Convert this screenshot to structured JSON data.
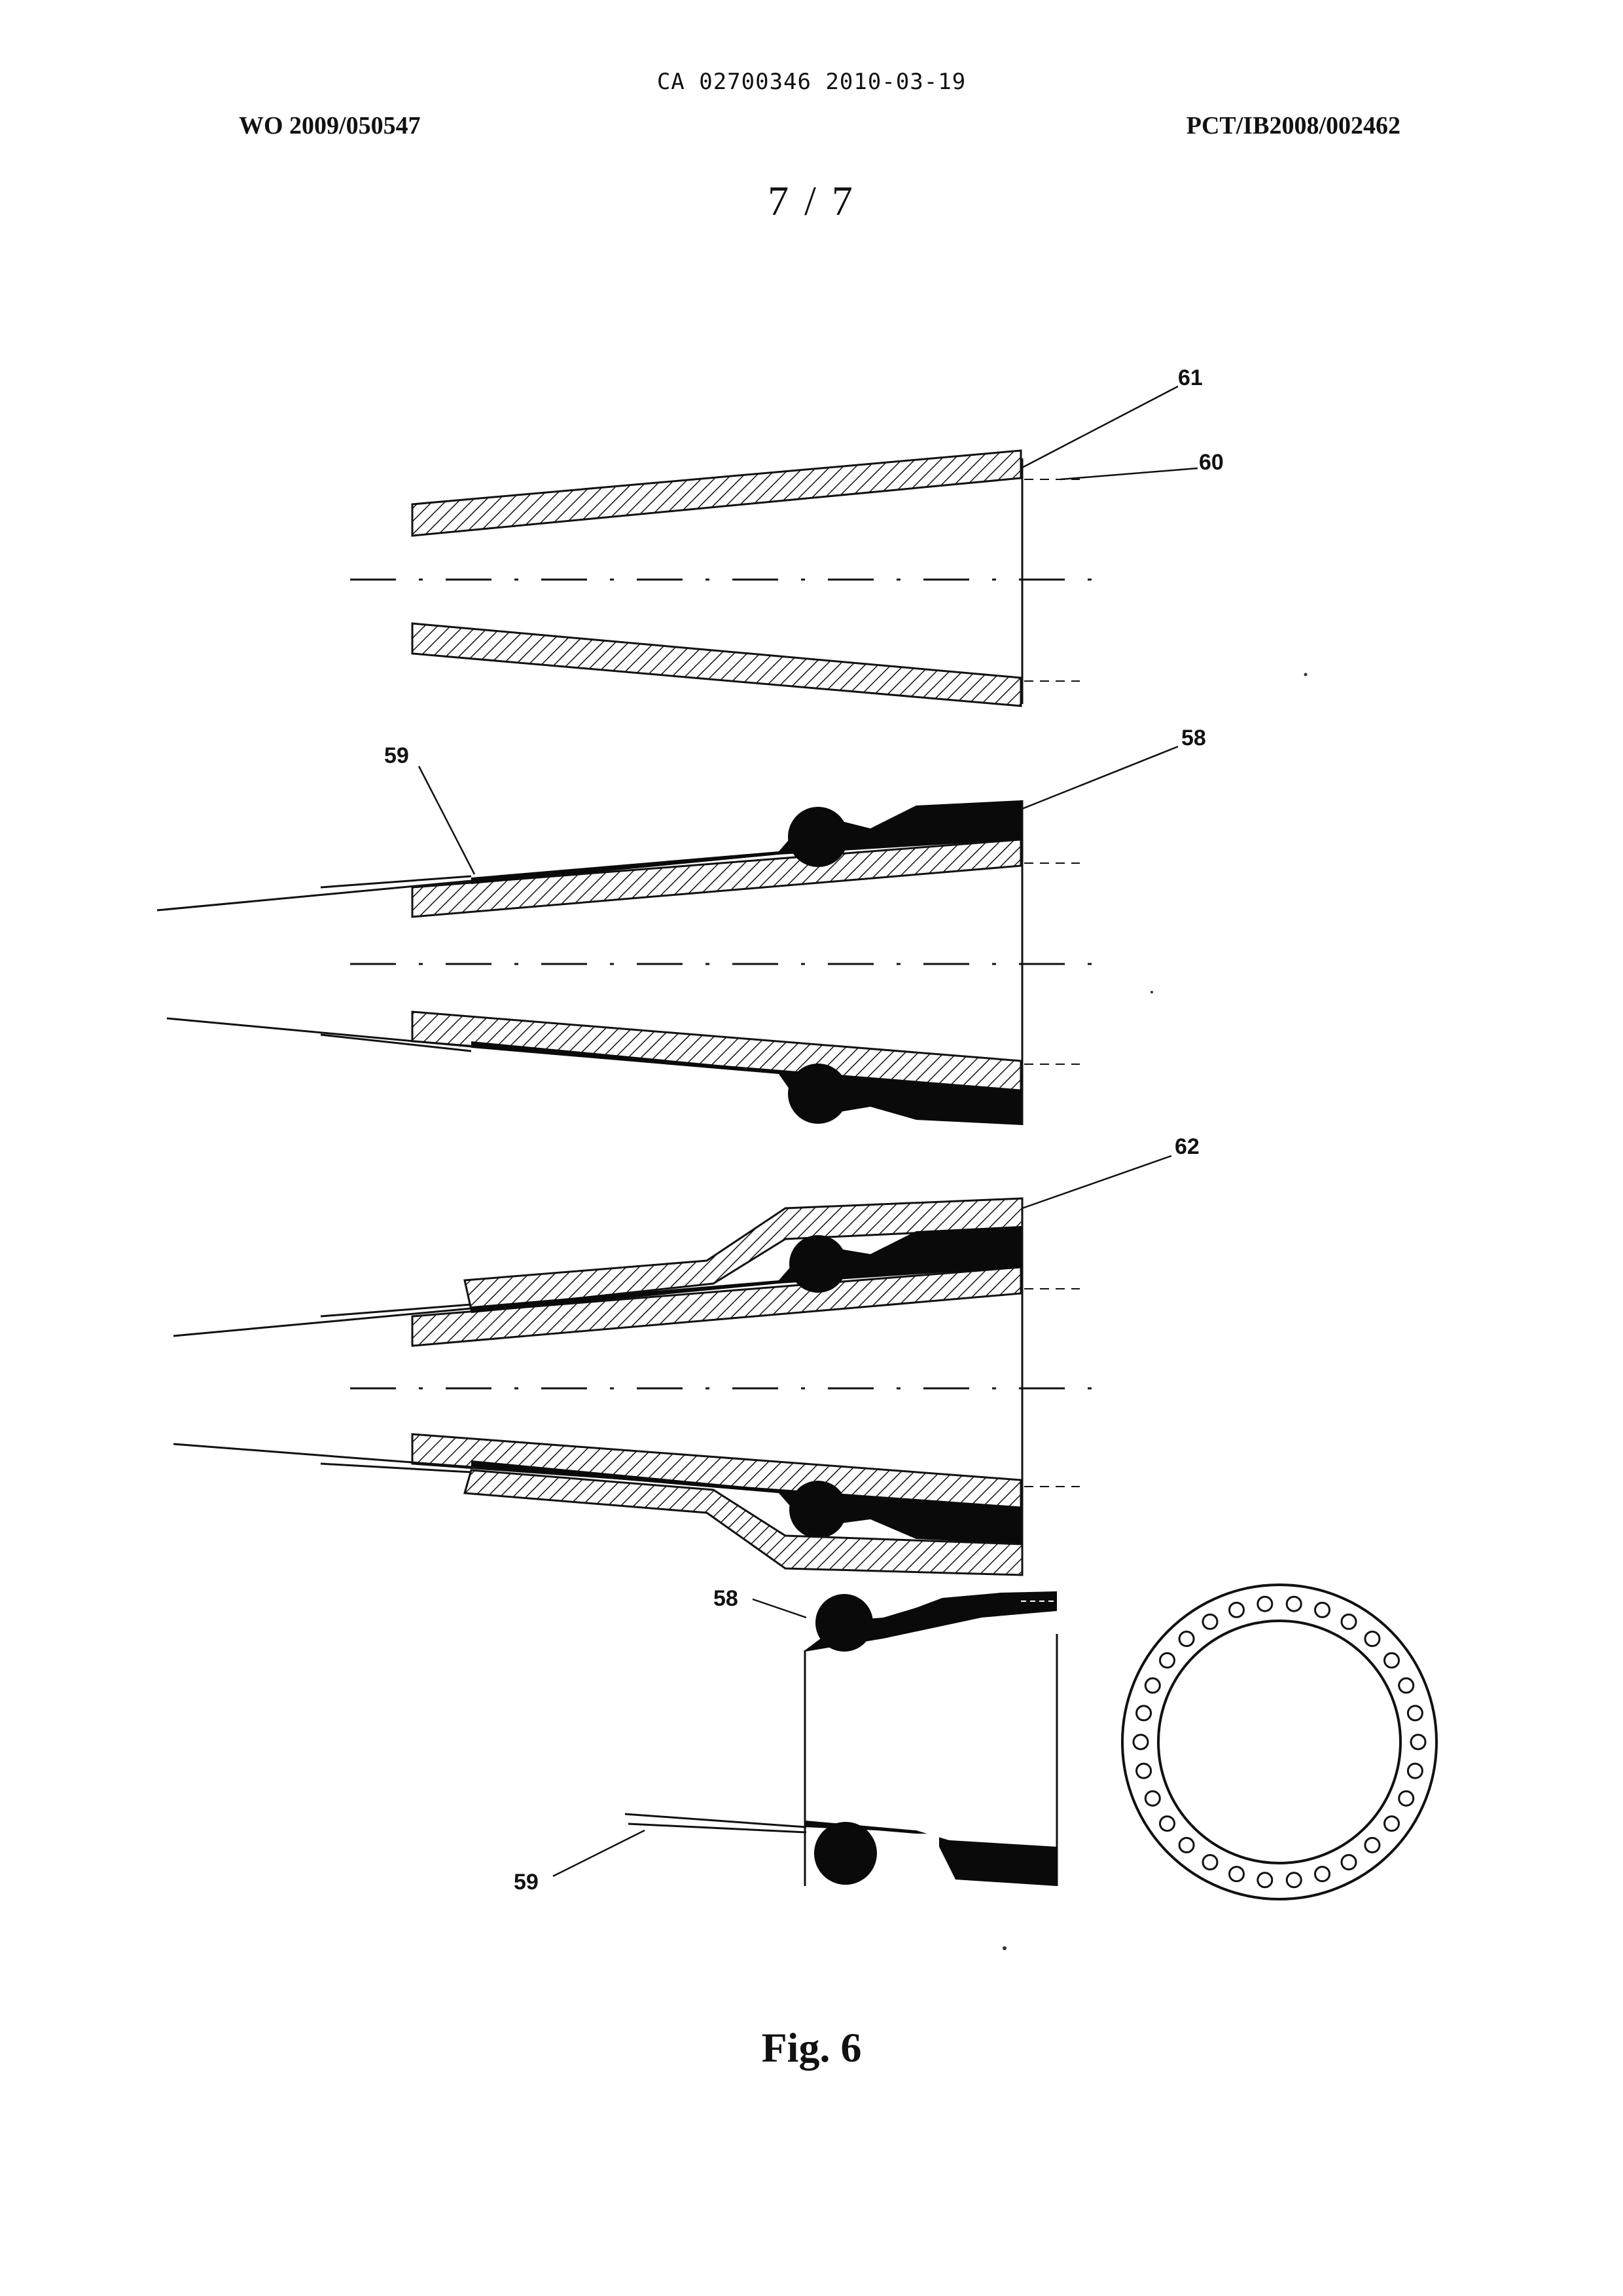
{
  "header": {
    "office_stamp": "CA 02700346 2010-03-19",
    "publication_number": "WO 2009/050547",
    "application_number": "PCT/IB2008/002462",
    "sheet_number": "7 / 7"
  },
  "figure": {
    "label": "Fig. 6",
    "reference_numerals": {
      "r61": "61",
      "r60": "60",
      "r59a": "59",
      "r58a": "58",
      "r62": "62",
      "r58b": "58",
      "r59b": "59"
    }
  }
}
